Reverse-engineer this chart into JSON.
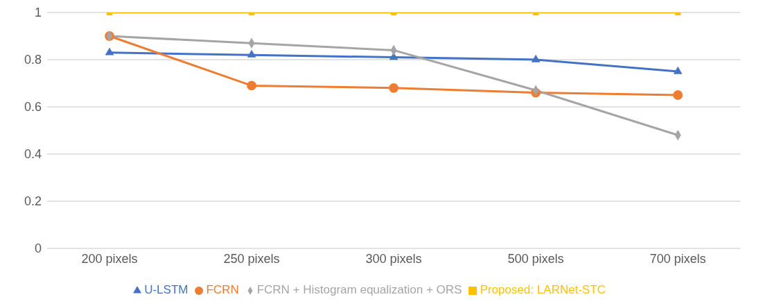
{
  "chart_data": {
    "type": "line",
    "categories": [
      "200 pixels",
      "250 pixels",
      "300 pixels",
      "500 pixels",
      "700 pixels"
    ],
    "series": [
      {
        "name": "U-LSTM",
        "color": "#4472c4",
        "marker": "triangle",
        "values": [
          0.83,
          0.82,
          0.81,
          0.8,
          0.75
        ]
      },
      {
        "name": "FCRN",
        "color": "#ed7d31",
        "marker": "circle",
        "values": [
          0.9,
          0.69,
          0.68,
          0.66,
          0.65
        ]
      },
      {
        "name": "FCRN + Histogram equalization + ORS",
        "color": "#a5a5a5",
        "marker": "diamond",
        "values": [
          0.9,
          0.87,
          0.84,
          0.67,
          0.48
        ]
      },
      {
        "name": "Proposed:  LARNet-STC",
        "color": "#ffc000",
        "marker": "square",
        "values": [
          1,
          1,
          1,
          1,
          1
        ]
      }
    ],
    "ylim": [
      0,
      1
    ],
    "yticks": [
      0,
      0.2,
      0.4,
      0.6,
      0.8,
      1
    ],
    "grid": "y",
    "legend": "bottom"
  }
}
